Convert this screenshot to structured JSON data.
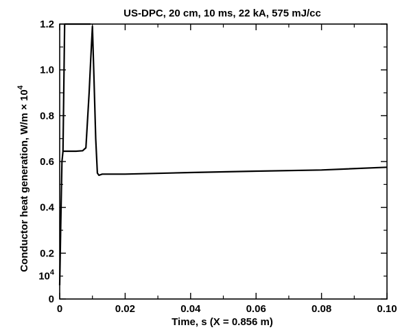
{
  "chart_data": {
    "type": "line",
    "title": "US-DPC, 20 cm, 10 ms, 22 kA, 575 mJ/cc",
    "xlabel": "Time, s (X = 0.856 m)",
    "ylabel": "Conductor heat generation, W/m × 10",
    "ylabel_exponent": "4",
    "xlim": [
      0,
      0.1
    ],
    "ylim": [
      0,
      1.2
    ],
    "x_ticks": [
      "0",
      "0.02",
      "0.04",
      "0.06",
      "0.08",
      "0.10"
    ],
    "x_tick_values": [
      0,
      0.02,
      0.04,
      0.06,
      0.08,
      0.1
    ],
    "y_ticks": [
      "0",
      "0.2",
      "0.4",
      "0.6",
      "0.8",
      "1.0",
      "1.2"
    ],
    "y_tick_values": [
      0,
      0.2,
      0.4,
      0.6,
      0.8,
      1.0,
      1.2
    ],
    "y_extra_label": {
      "base": "10",
      "exponent": "4",
      "value": 0.1
    },
    "grid": false,
    "series": [
      {
        "x": [
          0,
          0.0003,
          0.0007,
          0.001,
          0.003,
          0.005,
          0.007,
          0.008,
          0.009,
          0.0095,
          0.01,
          0.0105,
          0.011,
          0.0115,
          0.012,
          0.013,
          0.02,
          0.04,
          0.06,
          0.08,
          0.1
        ],
        "y": [
          0.06,
          0.3,
          0.6,
          0.645,
          0.645,
          0.645,
          0.647,
          0.66,
          0.9,
          1.05,
          1.19,
          0.95,
          0.7,
          0.55,
          0.54,
          0.545,
          0.545,
          0.552,
          0.558,
          0.563,
          0.575
        ]
      },
      {
        "x": [
          0.001,
          0.0015,
          0.009,
          0.0094
        ],
        "y": [
          0.645,
          1.2,
          1.2,
          1.2
        ]
      }
    ]
  }
}
